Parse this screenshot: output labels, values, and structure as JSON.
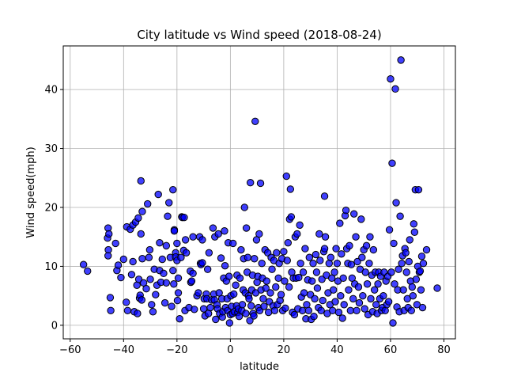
{
  "chart_data": {
    "type": "scatter",
    "title": "City latitude vs Wind speed (2018-08-24)",
    "xlabel": "latitude",
    "ylabel": "Wind speed(mph)",
    "xlim": [
      -62.6,
      84.3
    ],
    "ylim": [
      -2.3,
      47.4
    ],
    "xticks": [
      -60,
      -40,
      -20,
      0,
      20,
      40,
      60,
      80
    ],
    "yticks": [
      0,
      10,
      20,
      30,
      40
    ],
    "grid": true,
    "marker_color": "#0000ff",
    "edge_color": "#000000",
    "points": [
      [
        -55,
        10.3
      ],
      [
        -53.5,
        9.2
      ],
      [
        -46,
        14.8
      ],
      [
        -45.8,
        16.5
      ],
      [
        -45.5,
        15.5
      ],
      [
        -45.7,
        12.8
      ],
      [
        -45.8,
        11.8
      ],
      [
        -45,
        4.7
      ],
      [
        -44.8,
        2.5
      ],
      [
        -43,
        13.9
      ],
      [
        -42.5,
        9.3
      ],
      [
        -42,
        10.2
      ],
      [
        -41,
        8.1
      ],
      [
        -40,
        11.2
      ],
      [
        -39,
        3.9
      ],
      [
        -38.8,
        16.7
      ],
      [
        -38.5,
        2.5
      ],
      [
        -37.5,
        16.3
      ],
      [
        -37,
        8.6
      ],
      [
        -36.5,
        17
      ],
      [
        -36.5,
        10.8
      ],
      [
        -36,
        2.3
      ],
      [
        -35.5,
        17.5
      ],
      [
        -35,
        6.8
      ],
      [
        -34.8,
        2
      ],
      [
        -34.5,
        18.2
      ],
      [
        -34.3,
        7.8
      ],
      [
        -34,
        4.6
      ],
      [
        -33.8,
        5.1
      ],
      [
        -33.5,
        15.5
      ],
      [
        -33.2,
        4.3
      ],
      [
        -33.5,
        24.5
      ],
      [
        -33,
        19.3
      ],
      [
        -33,
        11.3
      ],
      [
        -32.5,
        7.2
      ],
      [
        -31.5,
        6.2
      ],
      [
        -31,
        20.6
      ],
      [
        -30.5,
        11.5
      ],
      [
        -30.2,
        12.8
      ],
      [
        -30,
        7.8
      ],
      [
        -29.5,
        3.5
      ],
      [
        -29,
        2.3
      ],
      [
        -28.5,
        9.5
      ],
      [
        -28,
        5.2
      ],
      [
        -27.5,
        6.8
      ],
      [
        -27,
        22.2
      ],
      [
        -26.5,
        9.3
      ],
      [
        -26.5,
        14
      ],
      [
        -26,
        7.3
      ],
      [
        -25.5,
        11.2
      ],
      [
        -25,
        8.8
      ],
      [
        -24.5,
        3.8
      ],
      [
        -24,
        13.5
      ],
      [
        -24,
        7.2
      ],
      [
        -23.5,
        18.5
      ],
      [
        -23,
        20.8
      ],
      [
        -22.5,
        11.5
      ],
      [
        -22,
        3.2
      ],
      [
        -21.5,
        23
      ],
      [
        -21.5,
        9.3
      ],
      [
        -21.2,
        7
      ],
      [
        -21,
        16.2
      ],
      [
        -21,
        16
      ],
      [
        -20.5,
        12.3
      ],
      [
        -20.5,
        11.6
      ],
      [
        -20,
        13.9
      ],
      [
        -20,
        11
      ],
      [
        -19.8,
        4.2
      ],
      [
        -19.5,
        8
      ],
      [
        -19.5,
        5.5
      ],
      [
        -19,
        1.1
      ],
      [
        -18.5,
        11.5
      ],
      [
        -18.2,
        18.4
      ],
      [
        -18,
        18.3
      ],
      [
        -17.5,
        12.7
      ],
      [
        -17.3,
        18.3
      ],
      [
        -17,
        2.5
      ],
      [
        -16.8,
        14.5
      ],
      [
        -16.5,
        12.3
      ],
      [
        -15.5,
        3
      ],
      [
        -15,
        9.2
      ],
      [
        -14.8,
        7.3
      ],
      [
        -14.5,
        7.5
      ],
      [
        -14,
        15
      ],
      [
        -14,
        8.8
      ],
      [
        -13.5,
        2.7
      ],
      [
        -12.5,
        5
      ],
      [
        -12,
        5.5
      ],
      [
        -11.5,
        15
      ],
      [
        -11.2,
        10.5
      ],
      [
        -11,
        10.3
      ],
      [
        -10.5,
        10.6
      ],
      [
        -10.5,
        14.5
      ],
      [
        -10,
        2.8
      ],
      [
        -9.8,
        4.5
      ],
      [
        -9.5,
        1.6
      ],
      [
        -9,
        5.3
      ],
      [
        -8.8,
        4.5
      ],
      [
        -8.5,
        9.5
      ],
      [
        -8.2,
        2
      ],
      [
        -8,
        12.3
      ],
      [
        -7.5,
        3
      ],
      [
        -7,
        4.3
      ],
      [
        -6.5,
        16.5
      ],
      [
        -6.2,
        5.3
      ],
      [
        -6,
        4.3
      ],
      [
        -5.8,
        15
      ],
      [
        -5.5,
        1
      ],
      [
        -5,
        3.5
      ],
      [
        -4.8,
        2.8
      ],
      [
        -4.5,
        15.5
      ],
      [
        -4.2,
        5.5
      ],
      [
        -4,
        2
      ],
      [
        -3.5,
        11.4
      ],
      [
        -3.2,
        4.5
      ],
      [
        -3,
        1.4
      ],
      [
        -2.8,
        2.3
      ],
      [
        -2.5,
        8
      ],
      [
        -2.2,
        16
      ],
      [
        -2,
        10.1
      ],
      [
        -1.8,
        3
      ],
      [
        -1.5,
        7.5
      ],
      [
        -1.2,
        4.5
      ],
      [
        -1,
        2.5
      ],
      [
        -0.8,
        14
      ],
      [
        -0.5,
        8.3
      ],
      [
        -0.3,
        0.4
      ],
      [
        0,
        1.8
      ],
      [
        0.2,
        5
      ],
      [
        0.5,
        3.2
      ],
      [
        0.8,
        2
      ],
      [
        1,
        13.9
      ],
      [
        1.3,
        5.3
      ],
      [
        1.5,
        2.3
      ],
      [
        2,
        6.8
      ],
      [
        2.3,
        3.3
      ],
      [
        2.5,
        8.5
      ],
      [
        2.8,
        2.2
      ],
      [
        3,
        2.8
      ],
      [
        3.3,
        1.5
      ],
      [
        3.6,
        8
      ],
      [
        4,
        12.8
      ],
      [
        4.3,
        2.5
      ],
      [
        4.5,
        3.5
      ],
      [
        4.8,
        6
      ],
      [
        5,
        11.3
      ],
      [
        5.3,
        20
      ],
      [
        5.6,
        5.5
      ],
      [
        5.8,
        2
      ],
      [
        6,
        16.5
      ],
      [
        6.3,
        9
      ],
      [
        6.5,
        11.5
      ],
      [
        6.8,
        5
      ],
      [
        7,
        4.5
      ],
      [
        7.3,
        0.8
      ],
      [
        7.5,
        24.2
      ],
      [
        7.8,
        3.3
      ],
      [
        8,
        6
      ],
      [
        8.3,
        8.5
      ],
      [
        8.5,
        2
      ],
      [
        8.8,
        1.6
      ],
      [
        9,
        11.3
      ],
      [
        9.3,
        34.6
      ],
      [
        9.5,
        5.5
      ],
      [
        9.8,
        14.5
      ],
      [
        10,
        7.3
      ],
      [
        10.3,
        8.3
      ],
      [
        10.5,
        3
      ],
      [
        10.8,
        15.5
      ],
      [
        11,
        2.5
      ],
      [
        11.3,
        24.1
      ],
      [
        11.5,
        6
      ],
      [
        11.8,
        10.5
      ],
      [
        12,
        8
      ],
      [
        12.3,
        4.5
      ],
      [
        12.6,
        3.2
      ],
      [
        13,
        12.8
      ],
      [
        13.3,
        6.3
      ],
      [
        13.6,
        7.5
      ],
      [
        14,
        12.3
      ],
      [
        14.3,
        2.2
      ],
      [
        14.6,
        4
      ],
      [
        15,
        5.5
      ],
      [
        15.3,
        11.5
      ],
      [
        15.6,
        9.5
      ],
      [
        16,
        3.3
      ],
      [
        16.3,
        11
      ],
      [
        16.6,
        2.5
      ],
      [
        17,
        6.5
      ],
      [
        17.3,
        12.3
      ],
      [
        17.6,
        3.5
      ],
      [
        18,
        8
      ],
      [
        18.3,
        10.5
      ],
      [
        18.6,
        4.2
      ],
      [
        19,
        5.2
      ],
      [
        19.3,
        11.3
      ],
      [
        19.6,
        2.5
      ],
      [
        20,
        12.5
      ],
      [
        20.3,
        7.5
      ],
      [
        20.6,
        2.9
      ],
      [
        21,
        25.3
      ],
      [
        21.3,
        11
      ],
      [
        21.6,
        14
      ],
      [
        22,
        6.5
      ],
      [
        22.2,
        18
      ],
      [
        22.5,
        23.1
      ],
      [
        22.8,
        18.4
      ],
      [
        23,
        9
      ],
      [
        23.3,
        2.2
      ],
      [
        23.6,
        8
      ],
      [
        24,
        1.8
      ],
      [
        24.3,
        15
      ],
      [
        24.6,
        8
      ],
      [
        25,
        15.5
      ],
      [
        25.3,
        2.8
      ],
      [
        25.6,
        8.1
      ],
      [
        26,
        17
      ],
      [
        26.3,
        10.5
      ],
      [
        26.6,
        4.8
      ],
      [
        27,
        2.5
      ],
      [
        27.3,
        9
      ],
      [
        27.6,
        5.5
      ],
      [
        28,
        13
      ],
      [
        28.3,
        1.1
      ],
      [
        28.6,
        3.5
      ],
      [
        29,
        7.7
      ],
      [
        29.3,
        2.5
      ],
      [
        29.6,
        11.5
      ],
      [
        30,
        5.2
      ],
      [
        30.3,
        1
      ],
      [
        30.6,
        7.5
      ],
      [
        31,
        10.5
      ],
      [
        31.3,
        1.5
      ],
      [
        31.6,
        4.5
      ],
      [
        32,
        12
      ],
      [
        32.3,
        9
      ],
      [
        32.6,
        6.3
      ],
      [
        33,
        3
      ],
      [
        33.3,
        15.5
      ],
      [
        33.6,
        11
      ],
      [
        34,
        2.5
      ],
      [
        34.3,
        7.8
      ],
      [
        34.6,
        4.2
      ],
      [
        35,
        12.5
      ],
      [
        35.3,
        13
      ],
      [
        35.6,
        15
      ],
      [
        35.3,
        21.9
      ],
      [
        36,
        8.5
      ],
      [
        36.3,
        2
      ],
      [
        36.6,
        5.5
      ],
      [
        37,
        10.5
      ],
      [
        37.3,
        3.5
      ],
      [
        37.6,
        11.5
      ],
      [
        38,
        8
      ],
      [
        38.3,
        2.5
      ],
      [
        38.6,
        6
      ],
      [
        39,
        9
      ],
      [
        39.3,
        4
      ],
      [
        39.6,
        13
      ],
      [
        40,
        10.5
      ],
      [
        40.3,
        7.5
      ],
      [
        40.6,
        2.2
      ],
      [
        41,
        17.3
      ],
      [
        41.3,
        5
      ],
      [
        41.6,
        12.1
      ],
      [
        42,
        1.2
      ],
      [
        42.3,
        8
      ],
      [
        42.6,
        3.5
      ],
      [
        43,
        18.6
      ],
      [
        43.3,
        19.5
      ],
      [
        43.6,
        13
      ],
      [
        44,
        10.5
      ],
      [
        44.3,
        6
      ],
      [
        44.6,
        13.5
      ],
      [
        45,
        2.5
      ],
      [
        45.3,
        10.3
      ],
      [
        45.6,
        8
      ],
      [
        46,
        4.5
      ],
      [
        46.3,
        18.9
      ],
      [
        46.6,
        7
      ],
      [
        47,
        15
      ],
      [
        47.3,
        2.5
      ],
      [
        47.6,
        10.8
      ],
      [
        48,
        6.5
      ],
      [
        48.3,
        3.8
      ],
      [
        48.6,
        9.5
      ],
      [
        49,
        18
      ],
      [
        49.3,
        11.5
      ],
      [
        49.6,
        5
      ],
      [
        50,
        12.8
      ],
      [
        50.3,
        2.8
      ],
      [
        50.6,
        9
      ],
      [
        51,
        13.5
      ],
      [
        51.3,
        7
      ],
      [
        51.6,
        1.8
      ],
      [
        52,
        10.5
      ],
      [
        52.3,
        15
      ],
      [
        52.6,
        4.5
      ],
      [
        53,
        8.5
      ],
      [
        53.3,
        2.3
      ],
      [
        53.6,
        12.8
      ],
      [
        54,
        6
      ],
      [
        54.3,
        9
      ],
      [
        54.6,
        3.5
      ],
      [
        55,
        2
      ],
      [
        55.3,
        7
      ],
      [
        55.6,
        9
      ],
      [
        56,
        4.5
      ],
      [
        56.3,
        8.3
      ],
      [
        56.6,
        2.5
      ],
      [
        57,
        3
      ],
      [
        57.3,
        5
      ],
      [
        57.6,
        9
      ],
      [
        58,
        2.5
      ],
      [
        58.3,
        7.5
      ],
      [
        58.6,
        3.5
      ],
      [
        59,
        8.3
      ],
      [
        59.3,
        4
      ],
      [
        59.6,
        16.2
      ],
      [
        60,
        41.8
      ],
      [
        60.3,
        9
      ],
      [
        60.6,
        27.5
      ],
      [
        60.9,
        0.4
      ],
      [
        61.2,
        13.9
      ],
      [
        61.5,
        7
      ],
      [
        61.8,
        40.1
      ],
      [
        62.1,
        20.8
      ],
      [
        62.4,
        3.1
      ],
      [
        62.7,
        6
      ],
      [
        63,
        9.5
      ],
      [
        63.3,
        2.3
      ],
      [
        63.6,
        18.5
      ],
      [
        63.9,
        45
      ],
      [
        64.2,
        10.5
      ],
      [
        64.5,
        11.8
      ],
      [
        64.8,
        6
      ],
      [
        65.1,
        2.5
      ],
      [
        65.4,
        13
      ],
      [
        65.7,
        12.3
      ],
      [
        66,
        9
      ],
      [
        66.3,
        4.5
      ],
      [
        66.6,
        3
      ],
      [
        66.9,
        10.8
      ],
      [
        67.2,
        14.5
      ],
      [
        67.5,
        7.5
      ],
      [
        67.8,
        2.5
      ],
      [
        68.1,
        6.5
      ],
      [
        68.4,
        5
      ],
      [
        68.7,
        17.2
      ],
      [
        69,
        15.8
      ],
      [
        69.3,
        23
      ],
      [
        69.6,
        7.8
      ],
      [
        69.9,
        3.5
      ],
      [
        70.2,
        10
      ],
      [
        70.5,
        23
      ],
      [
        70.8,
        9
      ],
      [
        71.1,
        9.2
      ],
      [
        71.4,
        6
      ],
      [
        71.7,
        11.7
      ],
      [
        72,
        3
      ],
      [
        72.3,
        10.5
      ],
      [
        73.5,
        12.8
      ],
      [
        77.5,
        6.3
      ]
    ]
  }
}
